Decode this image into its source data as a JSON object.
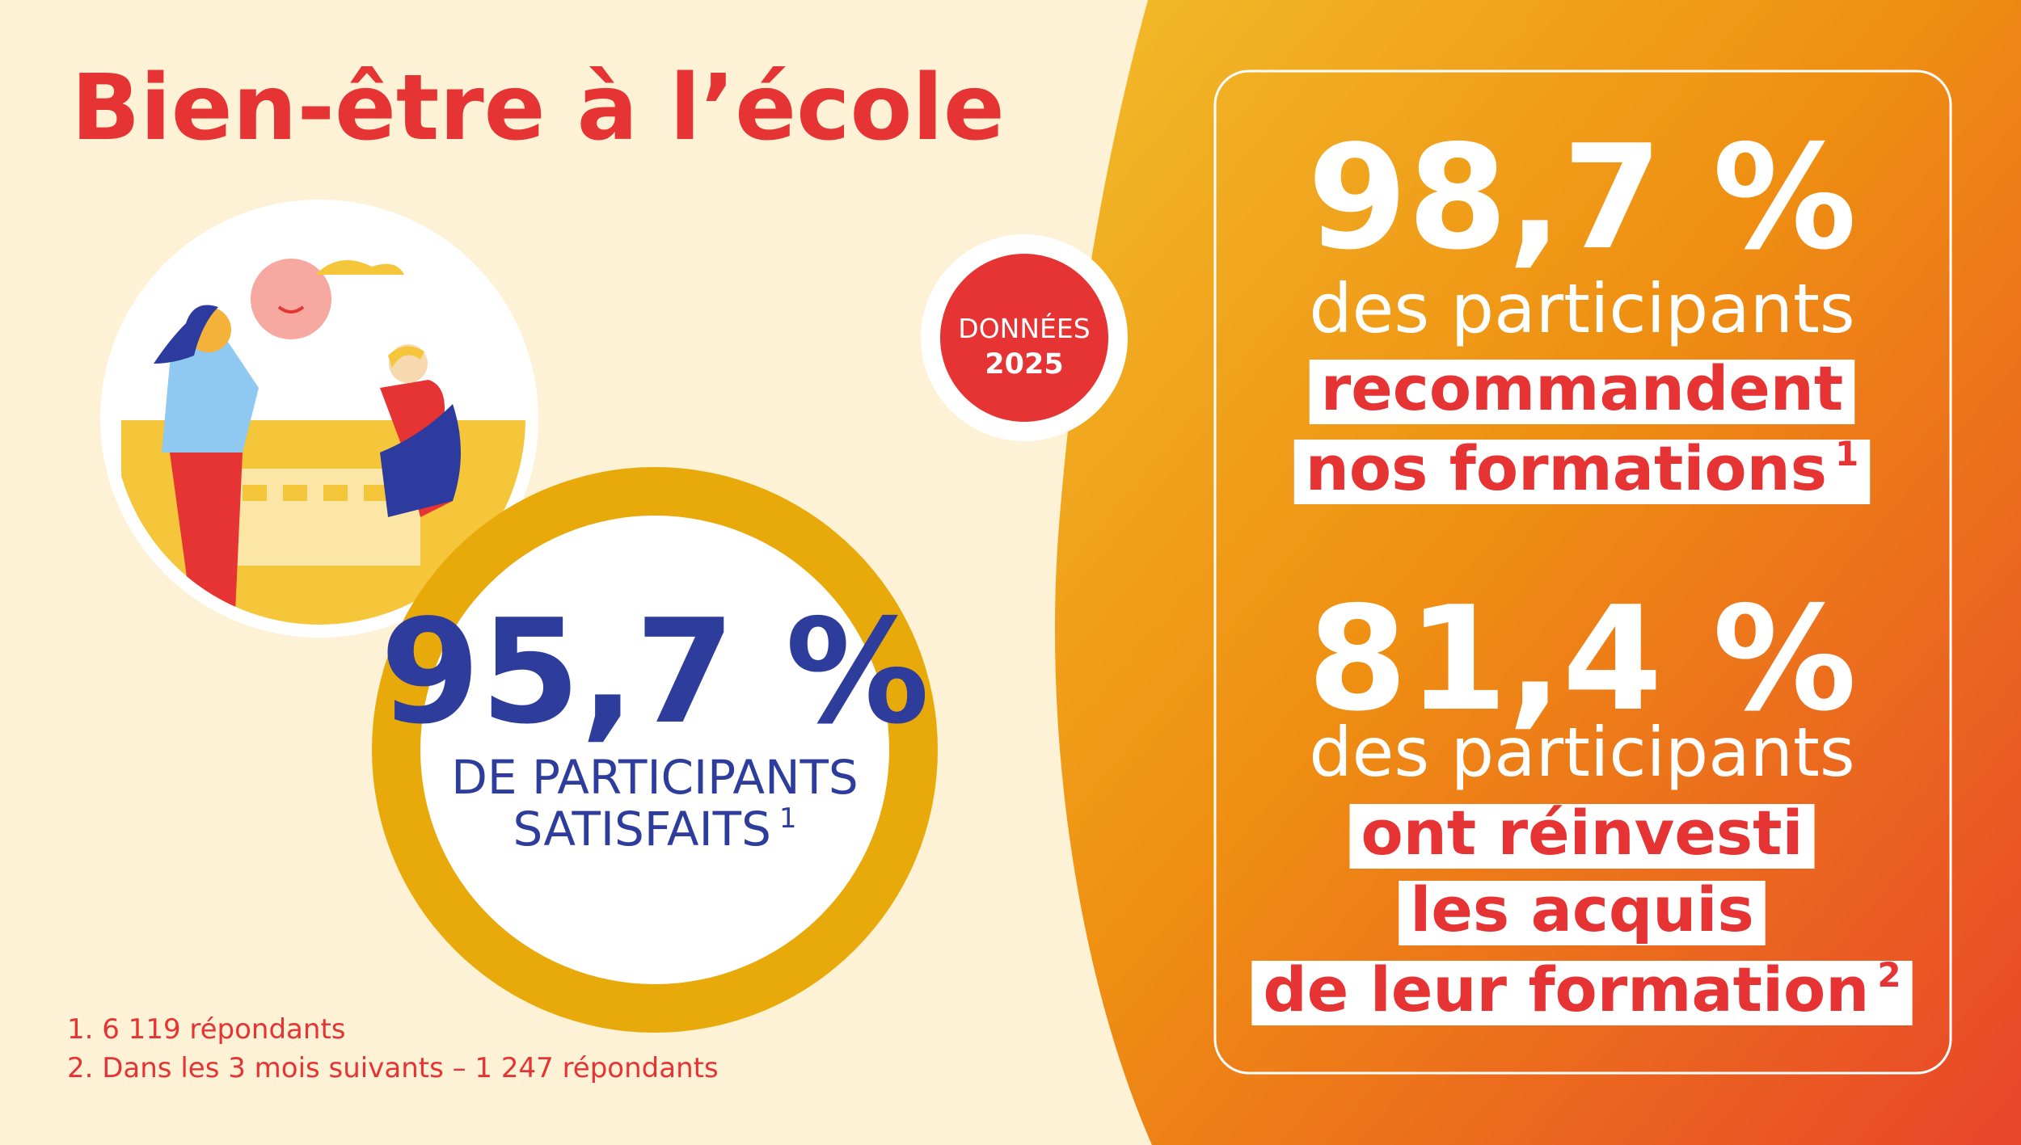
{
  "header": {
    "title": "Bien-être à l’école"
  },
  "badge": {
    "line1": "DONNÉES",
    "line2": "2025"
  },
  "main_stat": {
    "value": "95,7 %",
    "line1": "DE PARTICIPANTS",
    "line2": "SATISFAITS",
    "note": "1"
  },
  "stats": [
    {
      "value": "98,7 %",
      "intro": "des participants",
      "lines": [
        "recommandent",
        "nos formations"
      ],
      "note": "1"
    },
    {
      "value": "81,4 %",
      "intro": "des participants",
      "lines": [
        "ont réinvesti",
        "les acquis",
        "de leur formation"
      ],
      "note": "2"
    }
  ],
  "footnotes": [
    "1. 6 119 répondants",
    "2. Dans les 3 mois suivants – 1 247 répondants"
  ]
}
